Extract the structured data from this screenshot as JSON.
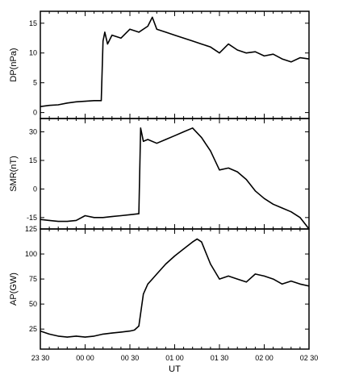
{
  "chart_data": [
    {
      "type": "line",
      "ylabel": "DP(nPa)",
      "ylim": [
        -1,
        17
      ],
      "yticks": [
        0,
        5,
        10,
        15
      ],
      "series": [
        {
          "x": [
            0,
            10,
            20,
            30,
            40,
            50,
            60,
            68,
            70,
            72,
            75,
            80,
            90,
            100,
            110,
            120,
            125,
            130,
            140,
            150,
            160,
            170,
            180,
            190,
            200,
            210,
            220,
            230,
            240,
            250,
            260,
            270,
            280,
            290,
            300
          ],
          "y": [
            1,
            1.2,
            1.3,
            1.6,
            1.8,
            1.9,
            2.0,
            2.0,
            12,
            13.5,
            11.5,
            13.0,
            12.5,
            14.0,
            13.5,
            14.5,
            16.0,
            14.0,
            13.5,
            13.0,
            12.5,
            12.0,
            11.5,
            11.0,
            10.0,
            11.5,
            10.5,
            10.0,
            10.2,
            9.5,
            9.8,
            9.0,
            8.5,
            9.2,
            9.0
          ]
        }
      ]
    },
    {
      "type": "line",
      "ylabel": "SMR(nT)",
      "ylim": [
        -21,
        37
      ],
      "yticks": [
        -15,
        0,
        15,
        30
      ],
      "series": [
        {
          "x": [
            0,
            10,
            20,
            30,
            40,
            50,
            60,
            70,
            80,
            90,
            100,
            110,
            112,
            115,
            120,
            130,
            140,
            150,
            160,
            170,
            180,
            190,
            200,
            210,
            220,
            230,
            240,
            250,
            260,
            270,
            280,
            290,
            300
          ],
          "y": [
            -16,
            -16.5,
            -17,
            -17,
            -16.5,
            -14,
            -15,
            -15,
            -14.5,
            -14,
            -13.5,
            -13,
            32,
            25,
            26,
            24,
            26,
            28,
            30,
            32,
            27,
            20,
            10,
            11,
            9,
            5,
            -1,
            -5,
            -8,
            -10,
            -12,
            -15,
            -21
          ]
        }
      ]
    },
    {
      "type": "line",
      "xlabel": "UT",
      "ylabel": "AP(GW)",
      "ylim": [
        5,
        125
      ],
      "yticks": [
        25,
        50,
        75,
        100,
        125
      ],
      "xticklabels": [
        "23 30",
        "00 00",
        "00 30",
        "01 00",
        "01 30",
        "02 00",
        "02 30"
      ],
      "series": [
        {
          "x": [
            0,
            10,
            20,
            30,
            40,
            50,
            60,
            70,
            80,
            90,
            100,
            105,
            110,
            115,
            120,
            125,
            130,
            140,
            150,
            160,
            170,
            175,
            180,
            190,
            200,
            210,
            220,
            230,
            240,
            250,
            260,
            270,
            280,
            290,
            300
          ],
          "y": [
            23,
            20,
            18,
            17,
            18,
            17,
            18,
            20,
            21,
            22,
            23,
            24,
            28,
            60,
            70,
            75,
            80,
            90,
            98,
            105,
            112,
            115,
            112,
            90,
            75,
            78,
            75,
            72,
            80,
            78,
            75,
            70,
            73,
            70,
            68
          ]
        }
      ]
    }
  ]
}
